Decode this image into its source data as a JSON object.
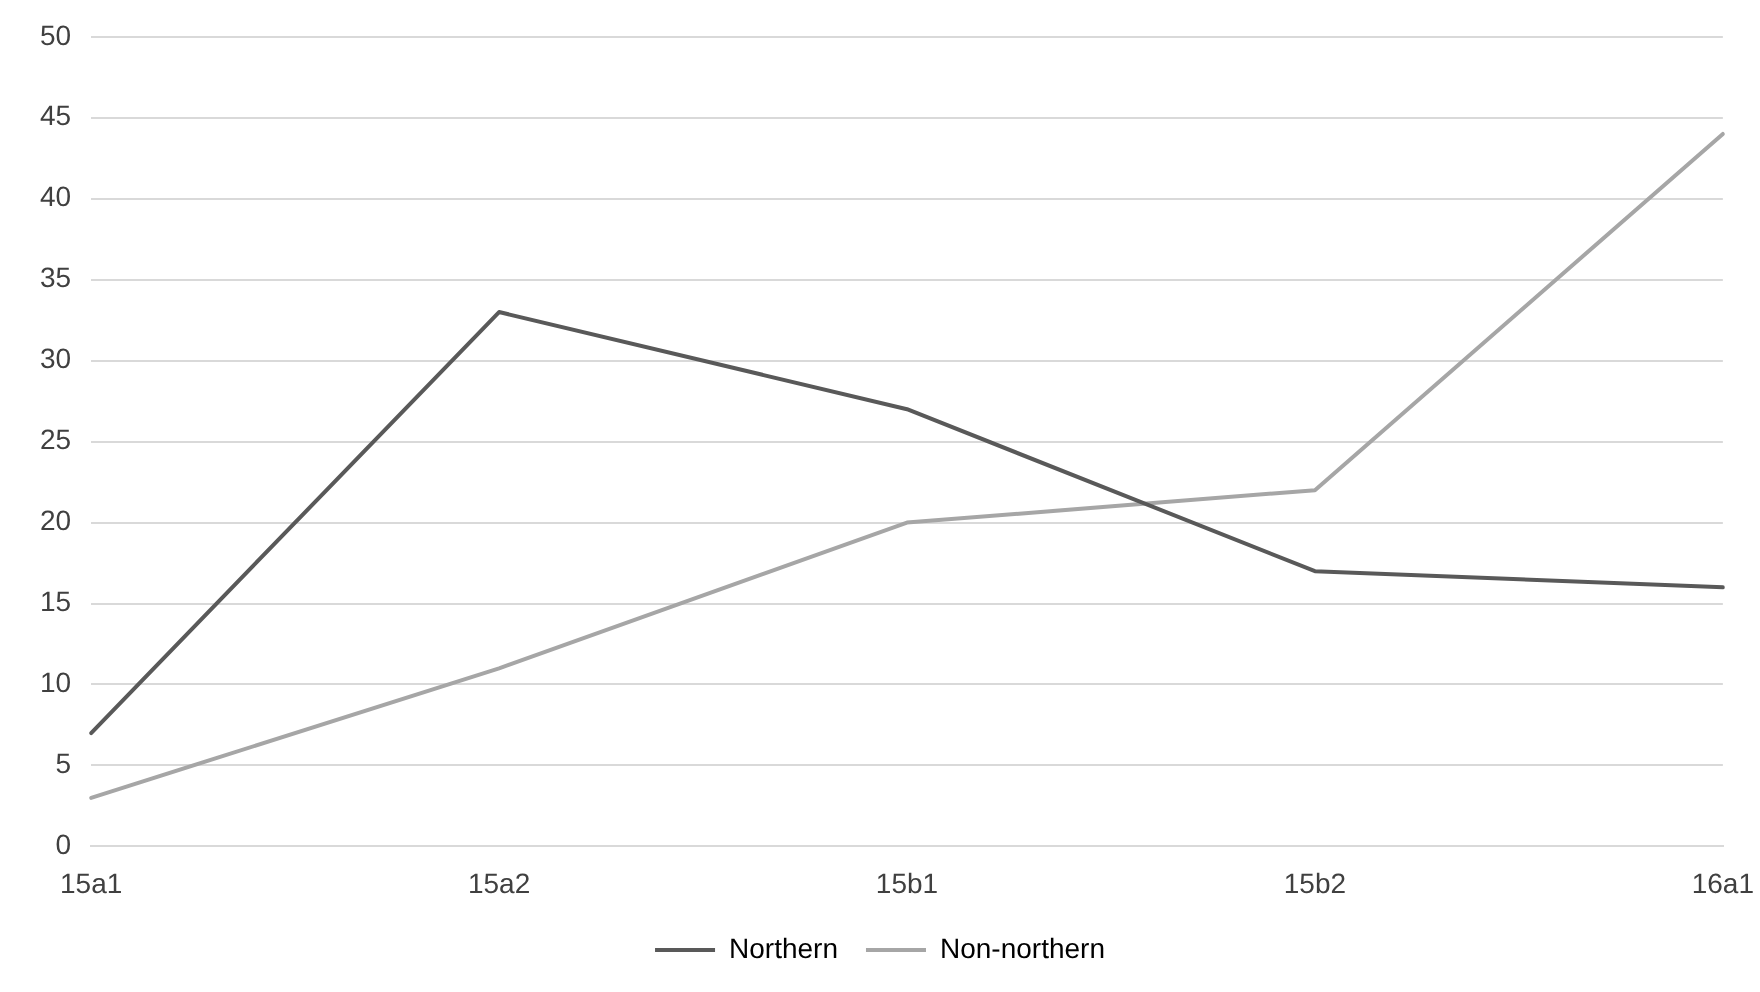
{
  "chart_data": {
    "type": "line",
    "categories": [
      "15a1",
      "15a2",
      "15b1",
      "15b2",
      "16a1"
    ],
    "series": [
      {
        "name": "Northern",
        "color": "#595959",
        "values": [
          7,
          33,
          27,
          17,
          16
        ]
      },
      {
        "name": "Non-northern",
        "color": "#a6a6a6",
        "values": [
          3,
          11,
          20,
          22,
          44
        ]
      }
    ],
    "ylim": [
      0,
      50
    ],
    "yticks": [
      0,
      5,
      10,
      15,
      20,
      25,
      30,
      35,
      40,
      45,
      50
    ],
    "grid": "y",
    "legend": "bottom",
    "marker": "none",
    "line_style": "solid"
  }
}
